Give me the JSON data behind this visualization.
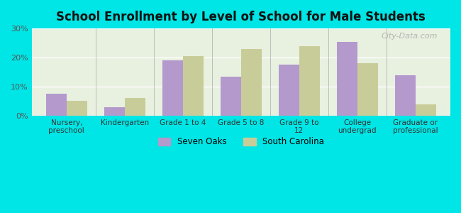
{
  "title": "School Enrollment by Level of School for Male Students",
  "categories": [
    "Nursery,\npreschool",
    "Kindergarten",
    "Grade 1 to 4",
    "Grade 5 to 8",
    "Grade 9 to\n12",
    "College\nundergrad",
    "Graduate or\nprofessional"
  ],
  "seven_oaks": [
    7.5,
    3.0,
    19.0,
    13.5,
    17.5,
    25.5,
    14.0
  ],
  "south_carolina": [
    5.0,
    6.0,
    20.5,
    23.0,
    24.0,
    18.0,
    4.0
  ],
  "seven_oaks_color": "#b399cc",
  "south_carolina_color": "#c8cc99",
  "background_outer": "#00e5e5",
  "background_inner_top": "#e8f0e0",
  "background_inner_bottom": "#f5f5f0",
  "ylim": [
    0,
    30
  ],
  "yticks": [
    0,
    10,
    20,
    30
  ],
  "ytick_labels": [
    "0%",
    "10%",
    "20%",
    "30%"
  ],
  "bar_width": 0.35,
  "legend_labels": [
    "Seven Oaks",
    "South Carolina"
  ],
  "watermark": "City-Data.com"
}
